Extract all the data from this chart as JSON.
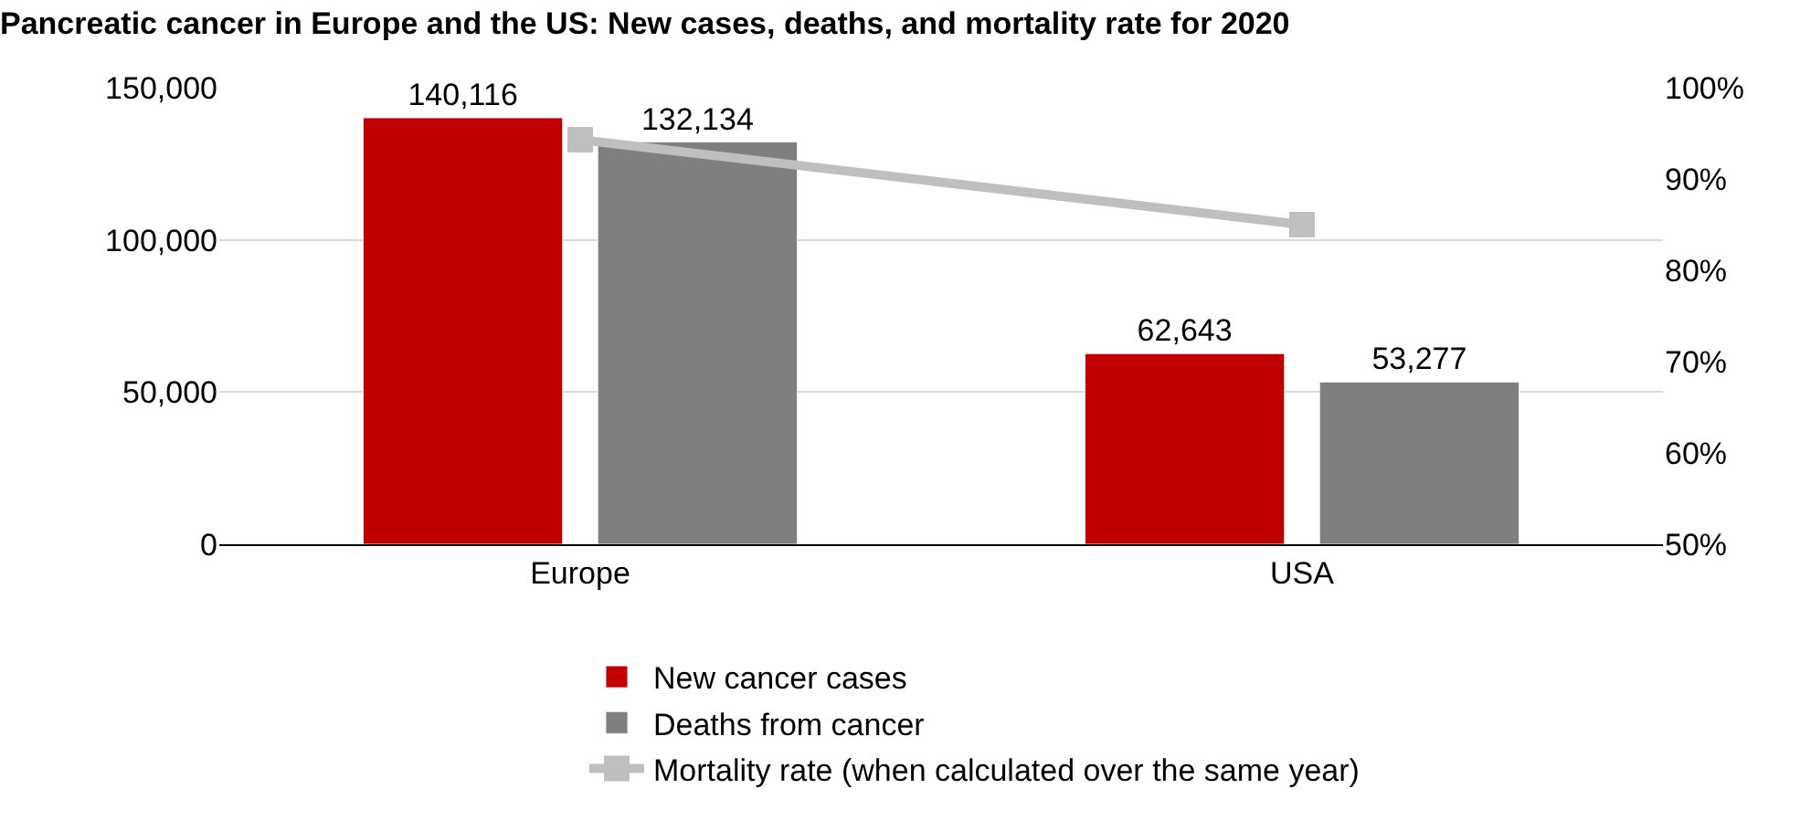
{
  "chart_data": {
    "type": "bar",
    "title": "Pancreatic cancer in Europe and the US: New cases, deaths, and mortality rate for 2020",
    "categories": [
      "Europe",
      "USA"
    ],
    "series": [
      {
        "name": "New cancer cases",
        "color": "#c00000",
        "values": [
          140116,
          62643
        ],
        "value_labels": [
          "140,116",
          "62,643"
        ]
      },
      {
        "name": "Deaths from cancer",
        "color": "#7f7f7f",
        "values": [
          132134,
          53277
        ],
        "value_labels": [
          "132,134",
          "53,277"
        ]
      },
      {
        "name": "Mortality rate (when calculated over the same year)",
        "type": "line",
        "axis": "y2",
        "color": "#bfbfbf",
        "marker": "square",
        "values": [
          94.3,
          85.0
        ]
      }
    ],
    "ylim": [
      0,
      150000
    ],
    "yticks": [
      0,
      {
        "value": 50000,
        "label": "50,000"
      },
      {
        "value": 100000,
        "label": "100,000"
      },
      {
        "value": 150000,
        "label": "150,000"
      }
    ],
    "y2lim": [
      50,
      100
    ],
    "y2ticks": [
      {
        "value": 50,
        "label": "50%"
      },
      {
        "value": 60,
        "label": "60%"
      },
      {
        "value": 70,
        "label": "70%"
      },
      {
        "value": 80,
        "label": "80%"
      },
      {
        "value": 90,
        "label": "90%"
      },
      {
        "value": 100,
        "label": "100%"
      }
    ],
    "grid": "y",
    "legend": "bottom"
  }
}
